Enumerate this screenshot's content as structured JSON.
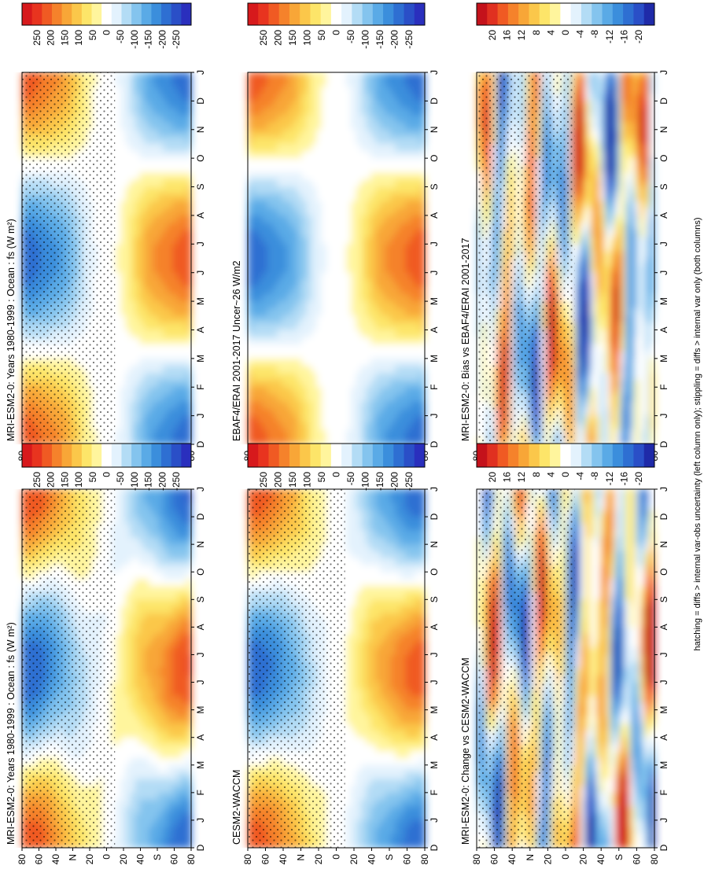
{
  "footnote": "hatching = diffs > internal var-obs uncertainty (left column only); stippling = diffs > internal var only (both columns)",
  "colors": {
    "field": [
      "#d7191c",
      "#e8341f",
      "#f05a23",
      "#f5822b",
      "#f8a637",
      "#fbc74a",
      "#fde569",
      "#fff59d",
      "#ffffff",
      "#e3f2fd",
      "#b3dcf5",
      "#84c4ee",
      "#5aaae6",
      "#3b8edc",
      "#2e6fd2",
      "#2a4fc7",
      "#2a2fbd"
    ],
    "diff": [
      "#c4121b",
      "#e03020",
      "#f05a23",
      "#f5822b",
      "#f8a637",
      "#fbc74a",
      "#fde569",
      "#fff59d",
      "#ffffff",
      "#e3f2fd",
      "#b3dcf5",
      "#84c4ee",
      "#5aaae6",
      "#3b8edc",
      "#2e6fd2",
      "#2a4fc7",
      "#1f2aa8"
    ]
  },
  "chart_data": [
    {
      "type": "heatmap",
      "title": "MRI-ESM2-0: Years 1980-1999 : Ocean : fs (W m²)",
      "x": [
        "D",
        "J",
        "F",
        "M",
        "A",
        "M",
        "J",
        "J",
        "A",
        "S",
        "O",
        "N",
        "D",
        "J"
      ],
      "y": [
        "80",
        "60",
        "40",
        "N",
        "20",
        "0",
        "20",
        "40",
        "S",
        "60",
        "80"
      ],
      "colorbar": [
        "250",
        "200",
        "150",
        "100",
        "50",
        "0",
        "-50",
        "-100",
        "-150",
        "-200",
        "-250"
      ],
      "units": "W m²"
    },
    {
      "type": "heatmap",
      "title": "MRI-ESM2-0: Years 1980-1999 : Ocean : fs (W m²)",
      "x": [
        "D",
        "J",
        "F",
        "M",
        "A",
        "M",
        "J",
        "J",
        "A",
        "S",
        "O",
        "N",
        "D",
        "J"
      ],
      "y": [
        "80",
        "60",
        "40",
        "N",
        "20",
        "0",
        "20",
        "40",
        "S",
        "60",
        "80"
      ],
      "colorbar": [
        "250",
        "200",
        "150",
        "100",
        "50",
        "0",
        "-50",
        "-100",
        "-150",
        "-200",
        "-250"
      ],
      "units": "W m²"
    },
    {
      "type": "heatmap",
      "title": "EBAF4/ERAI 2001-2017 Uncer~26 W/m2",
      "x": [
        "D",
        "J",
        "F",
        "M",
        "A",
        "M",
        "J",
        "J",
        "A",
        "S",
        "O",
        "N",
        "D",
        "J"
      ],
      "y": [
        "80",
        "60",
        "40",
        "N",
        "20",
        "0",
        "20",
        "40",
        "S",
        "60",
        "80"
      ],
      "colorbar": [
        "250",
        "200",
        "150",
        "100",
        "50",
        "0",
        "-50",
        "-100",
        "-150",
        "-200",
        "-250"
      ]
    },
    {
      "type": "heatmap",
      "title": "CESM2-WACCM",
      "x": [
        "D",
        "J",
        "F",
        "M",
        "A",
        "M",
        "J",
        "J",
        "A",
        "S",
        "O",
        "N",
        "D",
        "J"
      ],
      "y": [
        "80",
        "60",
        "40",
        "N",
        "20",
        "0",
        "20",
        "40",
        "S",
        "60",
        "80"
      ],
      "colorbar": [
        "250",
        "200",
        "150",
        "100",
        "50",
        "0",
        "-50",
        "-100",
        "-150",
        "-200",
        "-250"
      ]
    },
    {
      "type": "heatmap",
      "title": "MRI-ESM2-0: Bias vs EBAF4/ERAI 2001-2017",
      "x": [
        "D",
        "J",
        "F",
        "M",
        "A",
        "M",
        "J",
        "J",
        "A",
        "S",
        "O",
        "N",
        "D",
        "J"
      ],
      "y": [
        "80",
        "60",
        "40",
        "N",
        "20",
        "0",
        "20",
        "40",
        "S",
        "60",
        "80"
      ],
      "colorbar": [
        "20",
        "16",
        "12",
        "8",
        "4",
        "0",
        "-4",
        "-8",
        "-12",
        "-16",
        "-20"
      ]
    },
    {
      "type": "heatmap",
      "title": "MRI-ESM2-0: Change vs CESM2-WACCM",
      "x": [
        "D",
        "J",
        "F",
        "M",
        "A",
        "M",
        "J",
        "J",
        "A",
        "S",
        "O",
        "N",
        "D",
        "J"
      ],
      "y": [
        "80",
        "60",
        "40",
        "N",
        "20",
        "0",
        "20",
        "40",
        "S",
        "60",
        "80"
      ],
      "colorbar": [
        "20",
        "16",
        "12",
        "8",
        "4",
        "0",
        "-4",
        "-8",
        "-12",
        "-16",
        "-20"
      ]
    }
  ]
}
